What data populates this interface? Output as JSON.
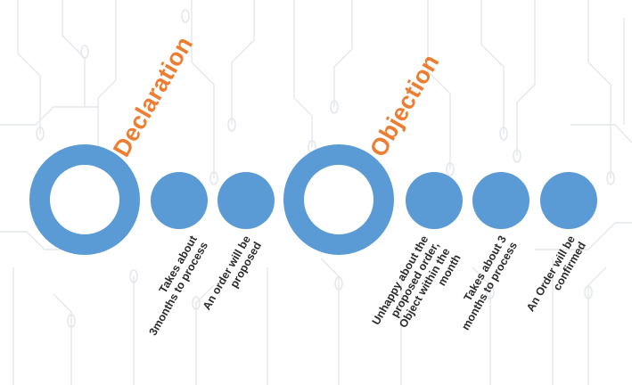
{
  "colors": {
    "accent": "#5b9bd5",
    "title": "#ed7d31",
    "text": "#2b2b2b",
    "circuit": "#e3e6ea"
  },
  "stages": [
    {
      "title": "Declaration",
      "steps": [
        {
          "lines": [
            "Takes about",
            "3months to process"
          ]
        },
        {
          "lines": [
            "An order will be",
            "proposed"
          ]
        }
      ]
    },
    {
      "title": "Objection",
      "steps": [
        {
          "lines": [
            "Unhappy about the",
            "proposed order,",
            "Object within the",
            "month"
          ]
        },
        {
          "lines": [
            "Takes about 3",
            "months to process"
          ]
        },
        {
          "lines": [
            "An Order will be",
            "confirmed"
          ]
        }
      ]
    }
  ]
}
